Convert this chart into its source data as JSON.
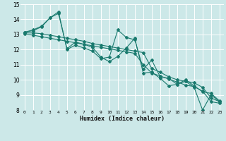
{
  "xlabel": "Humidex (Indice chaleur)",
  "bg_color": "#cce8e8",
  "grid_color": "#ffffff",
  "line_color": "#1a7a6e",
  "xlim": [
    -0.5,
    23.5
  ],
  "ylim": [
    8,
    15
  ],
  "yticks": [
    8,
    9,
    10,
    11,
    12,
    13,
    14,
    15
  ],
  "xticks": [
    0,
    1,
    2,
    3,
    4,
    5,
    6,
    7,
    8,
    9,
    10,
    11,
    12,
    13,
    14,
    15,
    16,
    17,
    18,
    19,
    20,
    21,
    22,
    23
  ],
  "series": [
    [
      13.15,
      13.3,
      13.55,
      14.1,
      14.4,
      12.05,
      12.5,
      12.35,
      12.15,
      11.5,
      11.2,
      11.55,
      12.1,
      12.75,
      10.45,
      10.5,
      10.1,
      9.6,
      9.7,
      9.9,
      9.5,
      8.0,
      9.0,
      8.55
    ],
    [
      13.15,
      13.25,
      13.5,
      14.1,
      14.5,
      12.0,
      12.3,
      12.1,
      11.9,
      11.4,
      11.5,
      13.3,
      12.8,
      12.65,
      10.7,
      11.3,
      10.2,
      10.1,
      9.7,
      10.0,
      9.6,
      9.2,
      9.1,
      8.6
    ],
    [
      13.1,
      13.1,
      13.05,
      12.95,
      12.85,
      12.75,
      12.65,
      12.55,
      12.4,
      12.3,
      12.2,
      12.1,
      12.0,
      11.9,
      11.8,
      10.75,
      10.5,
      10.2,
      10.0,
      9.9,
      9.8,
      9.5,
      8.8,
      8.55
    ],
    [
      13.05,
      12.95,
      12.85,
      12.75,
      12.65,
      12.55,
      12.45,
      12.35,
      12.25,
      12.15,
      12.05,
      11.95,
      11.85,
      11.75,
      11.0,
      10.45,
      10.25,
      10.05,
      9.85,
      9.65,
      9.55,
      9.25,
      8.55,
      8.45
    ]
  ]
}
